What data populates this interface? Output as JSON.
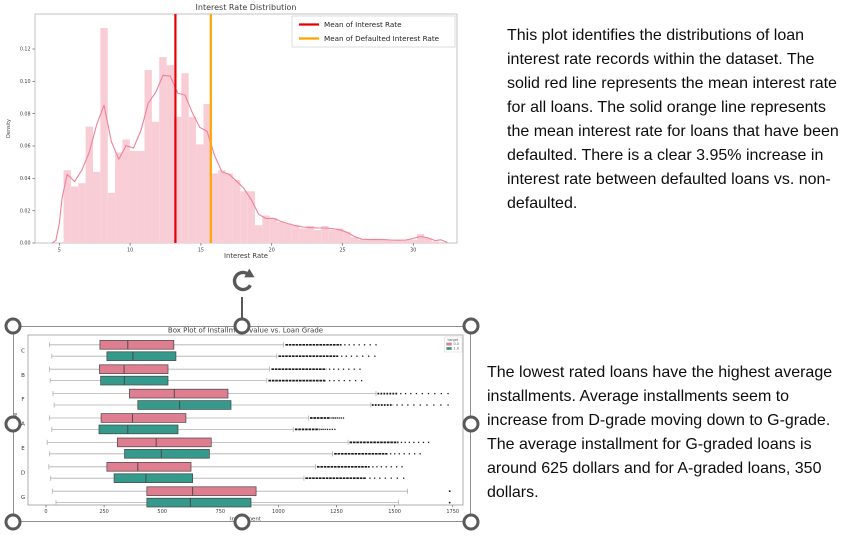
{
  "annotations": {
    "histogram_note": "This plot identifies the distributions of loan interest rate records within the dataset. The solid red line represents the mean interest rate for all loans. The solid orange line represents the mean interest rate for loans that have been defaulted. There is a clear 3.95% increase in interest rate between defaulted loans vs. non-defaulted.",
    "boxplot_note": "The lowest rated loans have the highest average installments. Average installments seem to increase from D-grade moving down to G-grade. The average installment for G-graded loans is around 625 dollars and for A-graded loans, 350 dollars."
  },
  "icons": {
    "rotate_handle_icon": "circular-clockwise-arrow"
  },
  "selection_colors": {
    "handle": "#595959",
    "border": "#8f8f8f"
  },
  "chart_data": [
    {
      "type": "histogram",
      "title": "Interest Rate Distribution",
      "xlabel": "Interest Rate",
      "ylabel": "Density",
      "xticks": [
        5,
        10,
        15,
        20,
        25,
        30
      ],
      "yticks": [
        0.0,
        0.02,
        0.04,
        0.06,
        0.08,
        0.1,
        0.12
      ],
      "xlim": [
        3.3,
        33.1
      ],
      "ylim": [
        0,
        0.1417
      ],
      "bin_start": 5.3,
      "bin_width": 0.52,
      "bar_heights": [
        0.045,
        0.035,
        0.037,
        0.072,
        0.044,
        0.133,
        0.031,
        0.056,
        0.064,
        0.057,
        0.057,
        0.107,
        0.075,
        0.115,
        0.11,
        0.078,
        0.105,
        0.078,
        0.061,
        0.086,
        0.043,
        0.045,
        0.043,
        0.039,
        0.032,
        0.032,
        0.011,
        0.017,
        0.0155,
        0.013,
        0.012,
        0.011,
        0.009,
        0.0105,
        0.008,
        0.0105,
        0.008,
        0.009,
        0.007,
        0.0035,
        0.002,
        0.002,
        0.0025,
        0.002,
        0.002,
        0.0015,
        0.002,
        0.002,
        0.0055,
        0.003,
        0.001
      ],
      "bar_color": "#f9cdd6",
      "kde_color": "#ef8198",
      "vlines": [
        {
          "x": 13.2,
          "color": "#e80000",
          "label": "Mean of Interest Rate"
        },
        {
          "x": 15.7,
          "color": "#ffa500",
          "label": "Mean of Defaulted Interest Rate"
        }
      ],
      "legend_position": "upper right"
    },
    {
      "type": "boxplot_horizontal_grouped",
      "title": "Box Plot of Installment value vs. Loan Grade",
      "xlabel": "Installment",
      "ylabel": "grade",
      "categories": [
        "C",
        "B",
        "F",
        "A",
        "E",
        "D",
        "G"
      ],
      "xticks": [
        0,
        250,
        500,
        750,
        1000,
        1250,
        1500,
        1750
      ],
      "xlim": [
        -78,
        1795
      ],
      "legend": {
        "title": "target",
        "entries": [
          {
            "label": "0.0",
            "color": "#df7e90"
          },
          {
            "label": "1.0",
            "color": "#35998b"
          }
        ]
      },
      "whisker_color": "#b0b0b0",
      "outlier_color": "#1a1a1a",
      "series": [
        {
          "name": "0.0",
          "color": "#df7e90",
          "boxes": [
            {
              "lo": 15,
              "q1": 232,
              "med": 352,
              "q3": 550,
              "hi": 1022,
              "out_start": 1030,
              "out_end": 1420,
              "out_style": "dense"
            },
            {
              "lo": 15,
              "q1": 230,
              "med": 336,
              "q3": 525,
              "hi": 962,
              "out_start": 970,
              "out_end": 1351,
              "out_style": "dense"
            },
            {
              "lo": 30,
              "q1": 359,
              "med": 552,
              "q3": 783,
              "hi": 1420,
              "out_start": 1426,
              "out_end": 1730,
              "out_style": "sparse"
            },
            {
              "lo": 15,
              "q1": 237,
              "med": 372,
              "q3": 602,
              "hi": 1130,
              "out_start": 1136,
              "out_end": 1280,
              "out_style": "dense"
            },
            {
              "lo": 5,
              "q1": 307,
              "med": 474,
              "q3": 711,
              "hi": 1300,
              "out_start": 1306,
              "out_end": 1646,
              "out_style": "dense"
            },
            {
              "lo": 12,
              "q1": 262,
              "med": 395,
              "q3": 624,
              "hi": 1160,
              "out_start": 1166,
              "out_end": 1532,
              "out_style": "dense"
            },
            {
              "lo": 27,
              "q1": 434,
              "med": 631,
              "q3": 904,
              "hi": 1556,
              "out_start": 1737,
              "out_end": 1737,
              "out_style": "dot"
            }
          ]
        },
        {
          "name": "1.0",
          "color": "#35998b",
          "boxes": [
            {
              "lo": 25,
              "q1": 262,
              "med": 374,
              "q3": 559,
              "hi": 993,
              "out_start": 1000,
              "out_end": 1415,
              "out_style": "dense"
            },
            {
              "lo": 18,
              "q1": 235,
              "med": 337,
              "q3": 525,
              "hi": 950,
              "out_start": 957,
              "out_end": 1358,
              "out_style": "dense"
            },
            {
              "lo": 35,
              "q1": 395,
              "med": 575,
              "q3": 796,
              "hi": 1398,
              "out_start": 1402,
              "out_end": 1730,
              "out_style": "sparse"
            },
            {
              "lo": 25,
              "q1": 228,
              "med": 352,
              "q3": 568,
              "hi": 1064,
              "out_start": 1071,
              "out_end": 1243,
              "out_style": "dense"
            },
            {
              "lo": 15,
              "q1": 338,
              "med": 496,
              "q3": 703,
              "hi": 1233,
              "out_start": 1240,
              "out_end": 1610,
              "out_style": "dense"
            },
            {
              "lo": 20,
              "q1": 293,
              "med": 430,
              "q3": 631,
              "hi": 1110,
              "out_start": 1116,
              "out_end": 1539,
              "out_style": "dense"
            },
            {
              "lo": 43,
              "q1": 434,
              "med": 621,
              "q3": 882,
              "hi": 1517,
              "out_start": 1737,
              "out_end": 1737,
              "out_style": "dot"
            }
          ]
        }
      ]
    }
  ]
}
